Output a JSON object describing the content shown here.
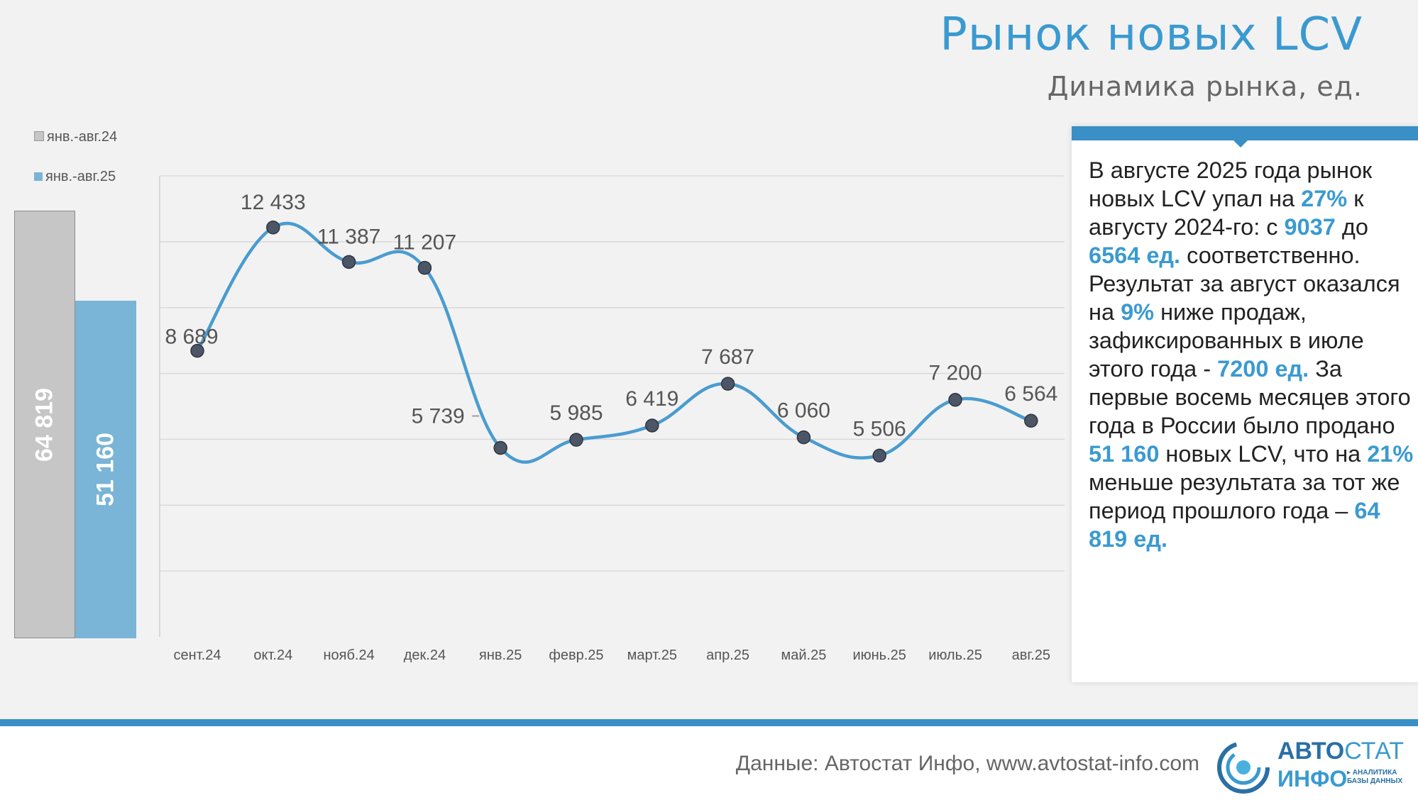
{
  "header": {
    "title": "Рынок новых LCV",
    "subtitle": "Динамика рынка, ед."
  },
  "ytd": {
    "legend_24": "янв.-авг.24",
    "legend_25": "янв.-авг.25",
    "value_24": 64819,
    "value_25": 51160,
    "label_24": "64 819",
    "label_25": "51 160",
    "color_24": "#c6c6c6",
    "color_25": "#7ab4d6"
  },
  "chart_data": {
    "type": "line",
    "title": "Динамика рынка, ед.",
    "categories": [
      "сент.24",
      "окт.24",
      "нояб.24",
      "дек.24",
      "янв.25",
      "февр.25",
      "март.25",
      "апр.25",
      "май.25",
      "июнь.25",
      "июль.25",
      "авг.25"
    ],
    "values": [
      8689,
      12433,
      11387,
      11207,
      5739,
      5985,
      6419,
      7687,
      6060,
      5506,
      7200,
      6564
    ],
    "labels": [
      "8 689",
      "12 433",
      "11 387",
      "11 207",
      "5 739",
      "5 985",
      "6 419",
      "7 687",
      "6 060",
      "5 506",
      "7 200",
      "6 564"
    ],
    "ylim": [
      0,
      14000
    ],
    "ytick_step": 2000,
    "grid": true,
    "line_color": "#4a9ccf",
    "marker_color": "#4d5666"
  },
  "panel": {
    "p1": "В августе 2025 года рынок новых LCV упал на ",
    "h1": "27%",
    "p2": " к августу 2024-го: с ",
    "h2": "9037",
    "p3": " до ",
    "h3": "6564 ед.",
    "p4": " соответственно. Результат за август оказался на ",
    "h4": "9%",
    "p5": " ниже продаж, зафиксированных в июле этого года - ",
    "h5": "7200 ед.",
    "p6": " За первые восемь месяцев этого года в России было продано ",
    "h6": "51 160",
    "p7": " новых LCV, что на ",
    "h7": "21%",
    "p8": " меньше результата за тот же период прошлого года – ",
    "h8": "64 819 ед."
  },
  "footer": {
    "source": "Данные: Автостат Инфо, www.avtostat-info.com",
    "logo_main": "АВТО",
    "logo_main_thin": "СТАТ",
    "logo_sub": "ИНФО",
    "logo_tag1": "▸ АНАЛИТИКА",
    "logo_tag2": "БАЗЫ ДАННЫХ"
  }
}
